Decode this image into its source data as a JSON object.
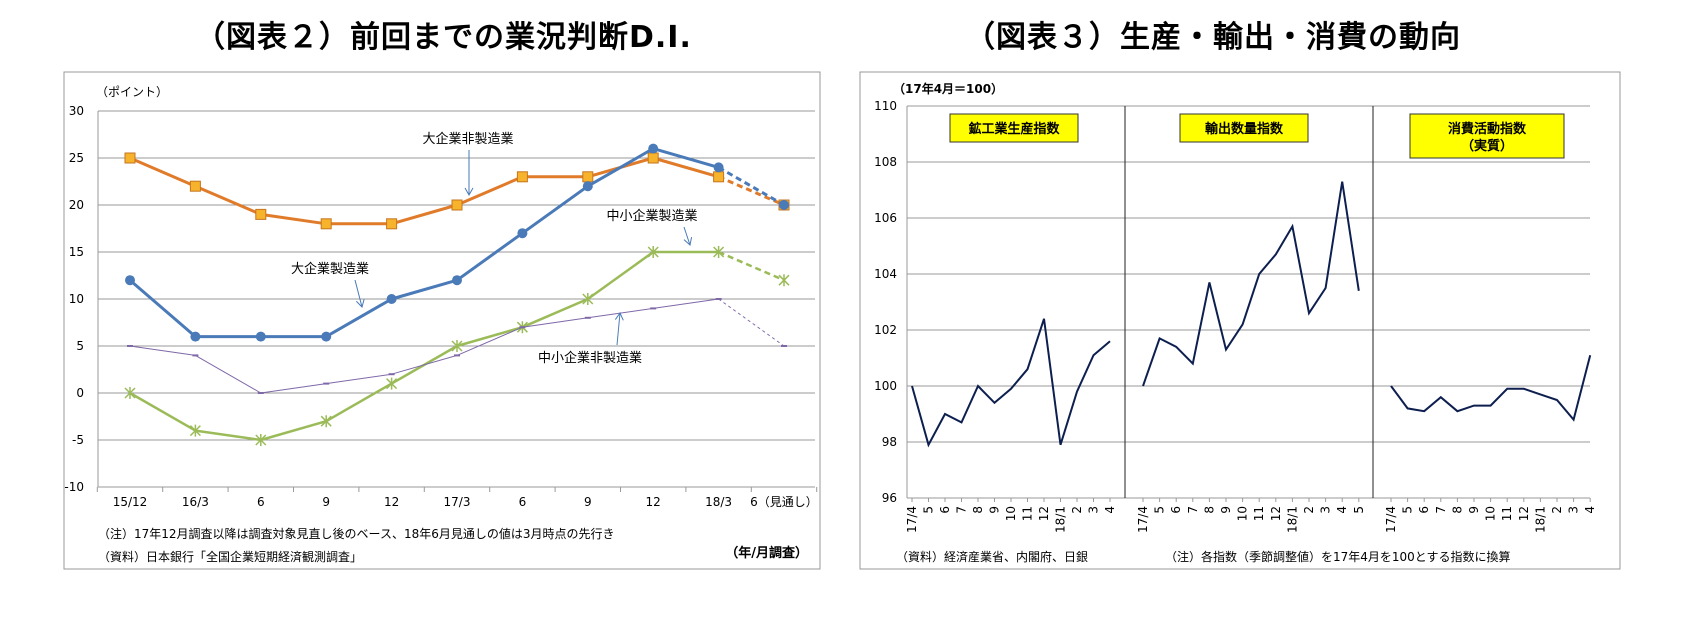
{
  "chart_data": [
    {
      "type": "line",
      "title": "（図表２）前回までの業況判断D.I.",
      "unit_label": "（ポイント）",
      "xlabel": "（年/月調査）",
      "ylim": [
        -10,
        30
      ],
      "yticks": [
        "30",
        "25",
        "20",
        "15",
        "10",
        "5",
        "0",
        "-5",
        "-10"
      ],
      "categories": [
        "15/12",
        "16/3",
        "6",
        "9",
        "12",
        "17/3",
        "6",
        "9",
        "12",
        "18/3",
        "6（見通し）"
      ],
      "grid": true,
      "series": [
        {
          "name": "大企業非製造業",
          "color": "#e07b2a",
          "marker": "square",
          "values": [
            25,
            22,
            19,
            18,
            18,
            20,
            23,
            23,
            25,
            23,
            20
          ]
        },
        {
          "name": "大企業製造業",
          "color": "#4a7ab8",
          "marker": "circle",
          "values": [
            12,
            6,
            6,
            6,
            10,
            12,
            17,
            22,
            26,
            24,
            20
          ]
        },
        {
          "name": "中小企業製造業",
          "color": "#9bbb59",
          "marker": "star",
          "values": [
            0,
            -4,
            -5,
            -3,
            1,
            5,
            7,
            10,
            15,
            15,
            12
          ]
        },
        {
          "name": "中小企業非製造業",
          "color": "#7f68a8",
          "marker": "dash",
          "values": [
            5,
            4,
            0,
            1,
            2,
            4,
            7,
            8,
            9,
            10,
            5
          ]
        }
      ],
      "annotations": {
        "note": "（注）17年12月調査以降は調査対象見直し後のベース、18年6月見通しの値は3月時点の先行き",
        "source": "（資料）日本銀行「全国企業短期経済観測調査」"
      }
    },
    {
      "type": "line",
      "title": "（図表３）生産・輸出・消費の動向",
      "unit_label": "（17年4月＝100）",
      "ylim": [
        96,
        110
      ],
      "yticks": [
        "110",
        "108",
        "106",
        "104",
        "102",
        "100",
        "98",
        "96"
      ],
      "grid": true,
      "panels": [
        {
          "label": "鉱工業生産指数",
          "categories": [
            "17/4",
            "5",
            "6",
            "7",
            "8",
            "9",
            "10",
            "11",
            "12",
            "18/1",
            "2",
            "3",
            "4"
          ],
          "values": [
            100,
            97.9,
            99.0,
            98.7,
            100.0,
            99.4,
            99.9,
            100.6,
            102.4,
            97.9,
            99.8,
            101.1,
            101.6
          ]
        },
        {
          "label": "輸出数量指数",
          "categories": [
            "17/4",
            "5",
            "6",
            "7",
            "8",
            "9",
            "10",
            "11",
            "12",
            "18/1",
            "2",
            "3",
            "4",
            "5"
          ],
          "values": [
            100,
            101.7,
            101.4,
            100.8,
            103.7,
            101.3,
            102.2,
            104.0,
            104.7,
            105.7,
            102.6,
            103.5,
            107.3,
            103.4
          ]
        },
        {
          "label": "消費活動指数",
          "label2": "（実質）",
          "categories": [
            "17/4",
            "5",
            "6",
            "7",
            "8",
            "9",
            "10",
            "11",
            "12",
            "18/1",
            "2",
            "3",
            "4"
          ],
          "values": [
            100,
            99.2,
            99.1,
            99.6,
            99.1,
            99.3,
            99.3,
            99.9,
            99.9,
            99.7,
            99.5,
            98.8,
            101.1
          ]
        }
      ],
      "line_color": "#0d1f4f",
      "label_bg": "#ffff00",
      "annotations": {
        "source": "（資料）経済産業省、内閣府、日銀",
        "note": "（注）各指数（季節調整値）を17年4月を100とする指数に換算"
      }
    }
  ]
}
